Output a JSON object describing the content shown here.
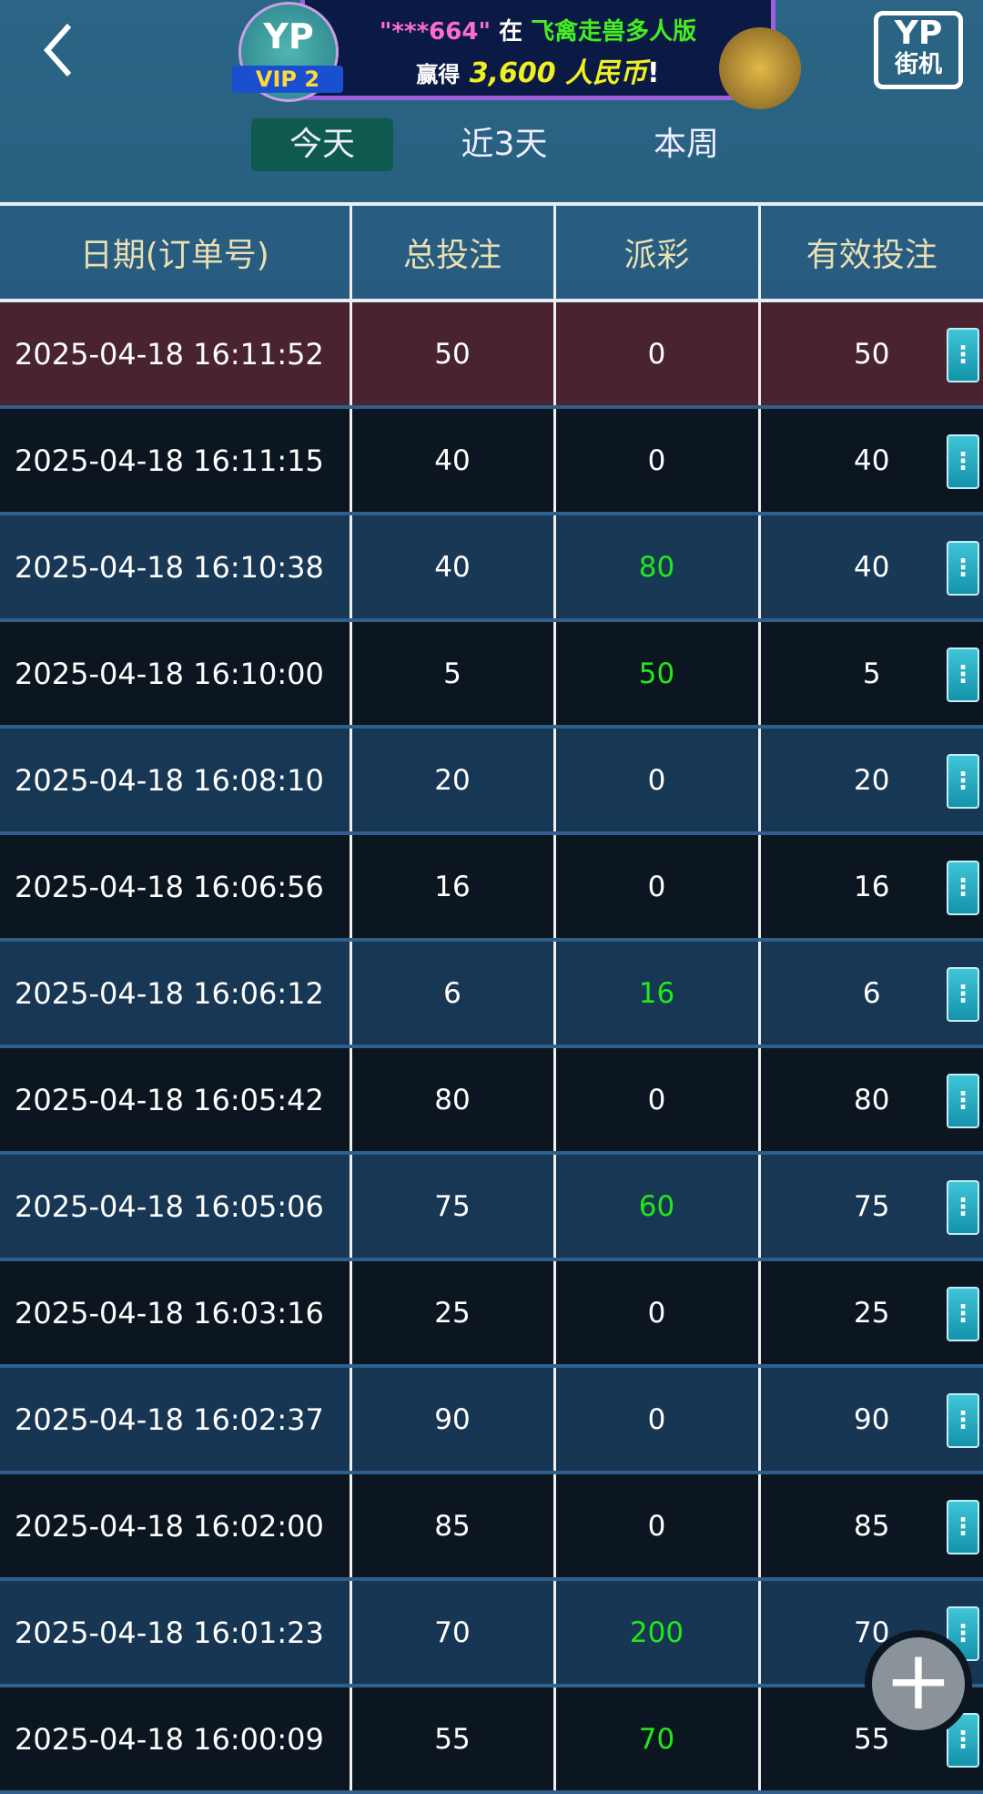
{
  "header": {
    "vip_logo": "YP",
    "vip_level": "VIP 2",
    "logo_line1": "YP",
    "logo_line2": "街机"
  },
  "banner": {
    "user": "\"***664\"",
    "in": "在",
    "game": "飞禽走兽多人版",
    "won": "赢得",
    "amount": "3,600 人民币",
    "suffix": "!"
  },
  "tabs": [
    {
      "label": "今天",
      "active": true
    },
    {
      "label": "近3天",
      "active": false
    },
    {
      "label": "本周",
      "active": false
    }
  ],
  "table": {
    "columns": [
      "日期(订单号)",
      "总投注",
      "派彩",
      "有效投注"
    ],
    "rows": [
      [
        "2025-04-18 16:11:52",
        "50",
        "0",
        "50"
      ],
      [
        "2025-04-18 16:11:15",
        "40",
        "0",
        "40"
      ],
      [
        "2025-04-18 16:10:38",
        "40",
        "80",
        "40"
      ],
      [
        "2025-04-18 16:10:00",
        "5",
        "50",
        "5"
      ],
      [
        "2025-04-18 16:08:10",
        "20",
        "0",
        "20"
      ],
      [
        "2025-04-18 16:06:56",
        "16",
        "0",
        "16"
      ],
      [
        "2025-04-18 16:06:12",
        "6",
        "16",
        "6"
      ],
      [
        "2025-04-18 16:05:42",
        "80",
        "0",
        "80"
      ],
      [
        "2025-04-18 16:05:06",
        "75",
        "60",
        "75"
      ],
      [
        "2025-04-18 16:03:16",
        "25",
        "0",
        "25"
      ],
      [
        "2025-04-18 16:02:37",
        "90",
        "0",
        "90"
      ],
      [
        "2025-04-18 16:02:00",
        "85",
        "0",
        "85"
      ],
      [
        "2025-04-18 16:01:23",
        "70",
        "200",
        "70"
      ],
      [
        "2025-04-18 16:00:09",
        "55",
        "70",
        "55"
      ]
    ]
  },
  "colors": {
    "win": "#22e81a",
    "highlight_row": "#4a2330",
    "active_tab": "#0f5a4e"
  },
  "icons": {
    "back": "chevron-left-icon",
    "row_menu": "more-vertical-icon",
    "fab": "plus-icon"
  }
}
